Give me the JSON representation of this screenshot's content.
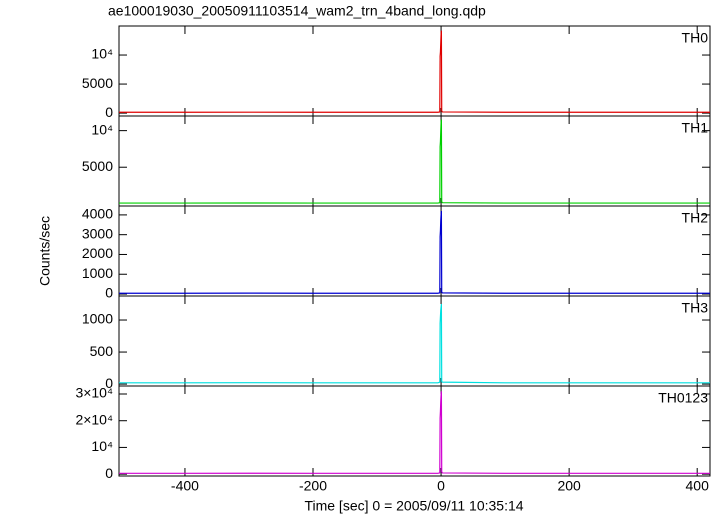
{
  "title": "ae100019030_20050911103514_wam2_trn_4band_long.qdp",
  "xlabel": "Time [sec] 0 = 2005/09/11 10:35:14",
  "ylabel": "Counts/sec",
  "chart_data": [
    {
      "type": "line",
      "label": "TH0",
      "xlim": [
        -503,
        420
      ],
      "ylim": [
        -500,
        15000
      ],
      "yticks": [
        0,
        5000,
        {
          "value": 10000,
          "label": "10⁴"
        }
      ],
      "series": [
        {
          "name": "TH0",
          "color": "#e00000",
          "x": [
            -503,
            -400,
            -300,
            -200,
            -100,
            -5,
            -2,
            -1.5,
            -1,
            -0.5,
            0,
            0.5,
            1,
            2,
            100,
            200,
            300,
            420
          ],
          "values": [
            150,
            150,
            160,
            150,
            150,
            150,
            200,
            9800,
            10500,
            12000,
            13500,
            14200,
            400,
            200,
            150,
            150,
            150,
            150
          ]
        }
      ]
    },
    {
      "type": "line",
      "label": "TH1",
      "xlim": [
        -503,
        420
      ],
      "ylim": [
        -300,
        12000
      ],
      "yticks": [
        5000,
        {
          "value": 10000,
          "label": "10⁴"
        }
      ],
      "series": [
        {
          "name": "TH1",
          "color": "#00d000",
          "x": [
            -503,
            -400,
            -300,
            -200,
            -100,
            -5,
            -2,
            -1.5,
            -1,
            -0.5,
            0,
            0.5,
            1,
            2,
            100,
            200,
            300,
            420
          ],
          "values": [
            100,
            100,
            110,
            100,
            100,
            100,
            150,
            7800,
            8500,
            9800,
            11000,
            11500,
            300,
            150,
            100,
            100,
            100,
            100
          ]
        }
      ]
    },
    {
      "type": "line",
      "label": "TH2",
      "xlim": [
        -503,
        420
      ],
      "ylim": [
        -100,
        4450
      ],
      "yticks": [
        0,
        1000,
        2000,
        3000,
        4000
      ],
      "series": [
        {
          "name": "TH2",
          "color": "#0000d0",
          "x": [
            -503,
            -400,
            -300,
            -200,
            -100,
            -5,
            -2,
            -1.5,
            -1,
            -0.5,
            0,
            0.5,
            1,
            2,
            100,
            200,
            300,
            420
          ],
          "values": [
            40,
            40,
            45,
            40,
            40,
            40,
            60,
            2900,
            3200,
            3700,
            4000,
            4200,
            100,
            60,
            40,
            40,
            40,
            40
          ]
        }
      ]
    },
    {
      "type": "line",
      "label": "TH3",
      "xlim": [
        -503,
        420
      ],
      "ylim": [
        -30,
        1375
      ],
      "yticks": [
        0,
        500,
        1000
      ],
      "series": [
        {
          "name": "TH3",
          "color": "#00e0e0",
          "x": [
            -503,
            -400,
            -300,
            -200,
            -100,
            -5,
            -2,
            -1.5,
            -1,
            -0.5,
            0,
            0.5,
            1,
            2,
            100,
            200,
            300,
            420
          ],
          "values": [
            20,
            20,
            22,
            20,
            20,
            20,
            30,
            950,
            1050,
            1150,
            1200,
            1250,
            40,
            30,
            20,
            20,
            20,
            20
          ]
        }
      ]
    },
    {
      "type": "line",
      "label": "TH0123",
      "xlim": [
        -503,
        420
      ],
      "ylim": [
        -700,
        33000
      ],
      "yticks": [
        0,
        {
          "value": 10000,
          "label": "10⁴"
        },
        {
          "value": 20000,
          "label": "2×10⁴"
        },
        {
          "value": 30000,
          "label": "3×10⁴"
        }
      ],
      "xticks": [
        -400,
        -200,
        0,
        200,
        400
      ],
      "series": [
        {
          "name": "TH0123",
          "color": "#d000d0",
          "x": [
            -503,
            -400,
            -300,
            -200,
            -100,
            -5,
            -2,
            -1.5,
            -1,
            -0.5,
            0,
            0.5,
            1,
            2,
            100,
            200,
            300,
            420
          ],
          "values": [
            300,
            300,
            320,
            300,
            300,
            300,
            450,
            21000,
            23500,
            27000,
            29500,
            31000,
            900,
            450,
            300,
            300,
            300,
            300
          ]
        }
      ]
    }
  ]
}
